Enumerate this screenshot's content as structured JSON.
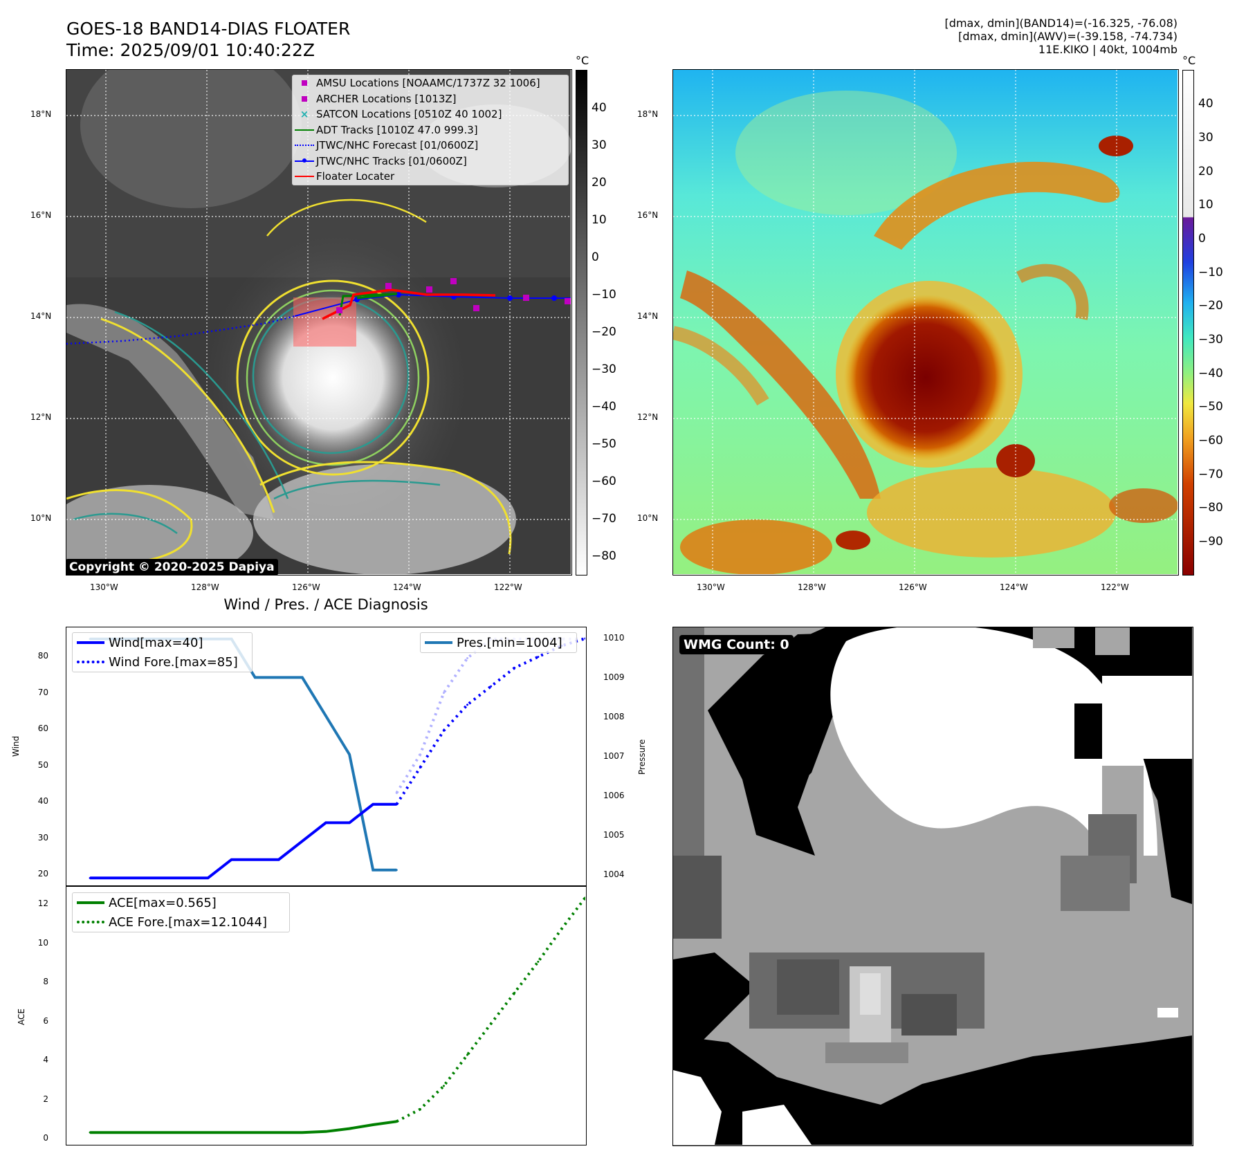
{
  "header": {
    "title_line1": "GOES-18 BAND14-DIAS FLOATER",
    "title_line2": "Time: 2025/09/01 10:40:22Z",
    "right_line1": "[dmax, dmin](BAND14)=(-16.325, -76.08)",
    "right_line2": "[dmax, dmin](AWV)=(-39.158, -74.734)",
    "right_line3": "11E.KIKO | 40kt, 1004mb"
  },
  "maps": {
    "lat_labels": [
      "18°N",
      "16°N",
      "14°N",
      "12°N",
      "10°N"
    ],
    "lon_labels": [
      "130°W",
      "128°W",
      "126°W",
      "124°W",
      "122°W"
    ],
    "colorbar_unit": "°C",
    "left_colorbar_ticks": [
      "40",
      "30",
      "20",
      "10",
      "0",
      "−10",
      "−20",
      "−30",
      "−40",
      "−50",
      "−60",
      "−70",
      "−80"
    ],
    "right_colorbar_ticks": [
      "40",
      "30",
      "20",
      "10",
      "0",
      "−10",
      "−20",
      "−30",
      "−40",
      "−50",
      "−60",
      "−70",
      "−80",
      "−90"
    ],
    "copyright": "Copyright © 2020-2025 Dapiya",
    "legend": [
      {
        "label": "AMSU Locations [NOAAMC/1737Z 32 1006]",
        "symbol": "square-marker",
        "color": "#c000c0"
      },
      {
        "label": "ARCHER Locations [1013Z]",
        "symbol": "square-marker",
        "color": "#c000c0"
      },
      {
        "label": "SATCON Locations [0510Z 40 1002]",
        "symbol": "x-marker",
        "color": "#20b0b0"
      },
      {
        "label": "ADT Tracks [1010Z 47.0 999.3]",
        "symbol": "solid-line",
        "color": "#008000"
      },
      {
        "label": "JTWC/NHC Forecast [01/0600Z]",
        "symbol": "dotted-line",
        "color": "#0000ff"
      },
      {
        "label": "JTWC/NHC Tracks [01/0600Z]",
        "symbol": "dot-line",
        "color": "#0000ff"
      },
      {
        "label": "Floater Locater",
        "symbol": "solid-line",
        "color": "#ff0000"
      }
    ]
  },
  "diagnosis": {
    "title": "Wind / Pres. / ACE Diagnosis",
    "wind_ylabel": "Wind",
    "pres_ylabel": "Pressure",
    "ace_ylabel": "ACE",
    "wind_legend": [
      "Wind[max=40]",
      "Wind Fore.[max=85]"
    ],
    "pres_legend": [
      "Pres.[min=1004]"
    ],
    "ace_legend": [
      "ACE[max=0.565]",
      "ACE Fore.[max=12.1044]"
    ],
    "wind_ticks": [
      "80",
      "70",
      "60",
      "50",
      "40",
      "30",
      "20"
    ],
    "pres_ticks": [
      "1010",
      "1009",
      "1008",
      "1007",
      "1006",
      "1005",
      "1004"
    ],
    "ace_ticks": [
      "12",
      "10",
      "8",
      "6",
      "4",
      "2",
      "0"
    ]
  },
  "wmg": {
    "label": "WMG Count: 0"
  },
  "chart_data": [
    {
      "type": "line",
      "title": "Wind / Pres. / ACE Diagnosis",
      "ylabel": "Wind",
      "ylim": [
        18,
        88
      ],
      "x": [
        0,
        1,
        2,
        3,
        4,
        5,
        6,
        7,
        8,
        9,
        10,
        11,
        12,
        13,
        14,
        15,
        16,
        17,
        18,
        19,
        20,
        21
      ],
      "series": [
        {
          "name": "Wind[max=40]",
          "color": "#0000ff",
          "style": "solid",
          "x": [
            0,
            1,
            2,
            3,
            4,
            5,
            6,
            7,
            8,
            9,
            10,
            11,
            12,
            13
          ],
          "values": [
            20,
            20,
            20,
            20,
            20,
            20,
            25,
            25,
            25,
            30,
            35,
            35,
            40,
            40
          ]
        },
        {
          "name": "Wind Fore.[max=85]",
          "color": "#0000ff",
          "style": "dotted",
          "x": [
            13,
            14,
            15,
            16,
            17,
            18,
            19,
            20,
            21
          ],
          "values": [
            40,
            50,
            60,
            67,
            72,
            77,
            80,
            83,
            85
          ]
        }
      ],
      "secondary_axis": {
        "ylabel": "Pressure",
        "ylim": [
          1003.6,
          1010.3
        ],
        "series": [
          {
            "name": "Pres.[min=1004]",
            "color": "#1f77b4",
            "style": "solid",
            "x": [
              0,
              1,
              2,
              3,
              4,
              5,
              6,
              7,
              8,
              9,
              10,
              11,
              12,
              13
            ],
            "values": [
              1010,
              1010,
              1010,
              1010,
              1010,
              1010,
              1010,
              1009,
              1009,
              1009,
              1008,
              1007,
              1004,
              1004
            ]
          },
          {
            "name": "",
            "color": "#b0b0ff",
            "style": "dotted",
            "x": [
              13,
              14,
              15,
              16,
              17,
              18,
              19,
              20,
              21
            ],
            "values": [
              1006,
              1007,
              1008.6,
              1009.5,
              1010,
              1010,
              1010,
              1010,
              1010
            ]
          }
        ]
      }
    },
    {
      "type": "line",
      "ylabel": "ACE",
      "ylim": [
        -0.6,
        12.7
      ],
      "series": [
        {
          "name": "ACE[max=0.565]",
          "color": "#008000",
          "style": "solid",
          "x": [
            0,
            1,
            2,
            3,
            4,
            5,
            6,
            7,
            8,
            9,
            10,
            11,
            12,
            13
          ],
          "values": [
            0,
            0,
            0,
            0,
            0,
            0,
            0,
            0,
            0,
            0,
            0.05,
            0.2,
            0.4,
            0.565
          ]
        },
        {
          "name": "ACE Fore.[max=12.1044]",
          "color": "#008000",
          "style": "dotted",
          "x": [
            13,
            14,
            15,
            16,
            17,
            18,
            19,
            20,
            21
          ],
          "values": [
            0.565,
            1.2,
            2.4,
            4.0,
            5.6,
            7.2,
            8.8,
            10.5,
            12.1044
          ]
        }
      ]
    }
  ]
}
